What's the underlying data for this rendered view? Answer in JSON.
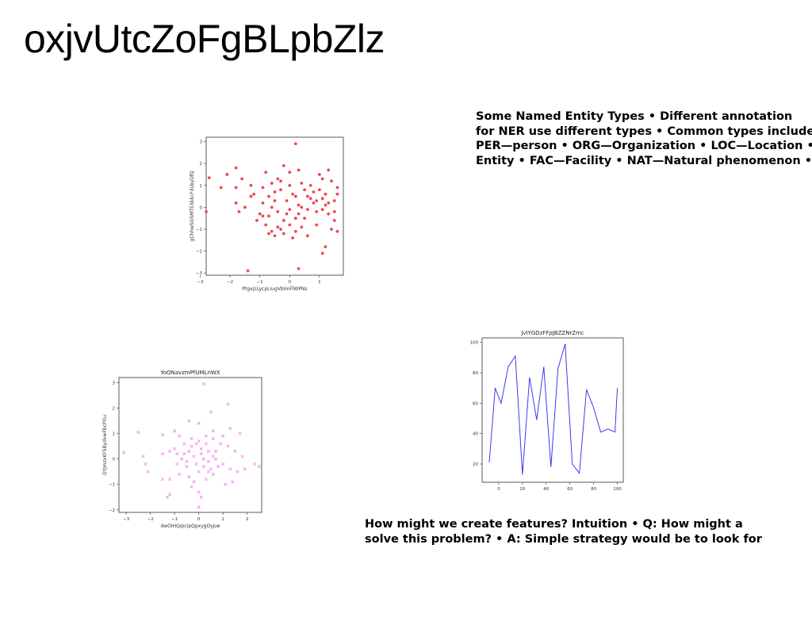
{
  "page": {
    "title": "oxjvUtcZoFgBLpbZlz"
  },
  "text_blocks": [
    {
      "lines": [
        "Some Named Entity Types • Different annotation",
        "for NER use different types • Common types include",
        "PER—person • ORG—Organization • LOC—Location •",
        "Entity • FAC—Facility • NAT—Natural phenomenon •"
      ]
    },
    {
      "lines": [
        "How might we create features? Intuition • Q: How might a",
        "solve this problem? • A: Simple strategy would be to look for"
      ]
    }
  ],
  "chart_data": [
    {
      "type": "scatter",
      "title": "",
      "xlabel": "PtgxjLLycpLiugVbImFlWPNs",
      "ylabel": "gChhwSGSMTEXkkcFdLbyDfQ",
      "xlim": [
        -2.8,
        1.8
      ],
      "ylim": [
        -3.1,
        3.2
      ],
      "xticks": [
        -3,
        -2,
        -1,
        0,
        1
      ],
      "yticks": [
        -3,
        -2,
        -1,
        0,
        1,
        2,
        3
      ],
      "marker": "o",
      "color": "#f0484e",
      "points": [
        [
          0.2,
          2.9
        ],
        [
          -0.2,
          1.9
        ],
        [
          -1.8,
          1.8
        ],
        [
          -2.1,
          1.5
        ],
        [
          -2.7,
          1.35
        ],
        [
          -1.6,
          1.3
        ],
        [
          -1.3,
          1.0
        ],
        [
          -2.3,
          0.9
        ],
        [
          -1.8,
          0.9
        ],
        [
          -0.5,
          0.7
        ],
        [
          -0.7,
          0.5
        ],
        [
          -1.2,
          0.6
        ],
        [
          -0.3,
          1.2
        ],
        [
          0.0,
          1.0
        ],
        [
          0.3,
          1.7
        ],
        [
          0.5,
          0.8
        ],
        [
          0.8,
          0.7
        ],
        [
          0.9,
          0.3
        ],
        [
          1.1,
          1.3
        ],
        [
          1.2,
          0.6
        ],
        [
          1.3,
          1.7
        ],
        [
          1.6,
          0.9
        ],
        [
          1.5,
          0.3
        ],
        [
          -0.9,
          0.2
        ],
        [
          -0.6,
          0.0
        ],
        [
          -0.4,
          -0.2
        ],
        [
          -0.1,
          0.3
        ],
        [
          0.2,
          0.5
        ],
        [
          0.4,
          0.0
        ],
        [
          0.6,
          -0.1
        ],
        [
          0.9,
          -0.2
        ],
        [
          1.1,
          -0.1
        ],
        [
          1.3,
          0.2
        ],
        [
          1.5,
          -0.6
        ],
        [
          1.6,
          -1.1
        ],
        [
          -1.0,
          -0.3
        ],
        [
          -0.8,
          -0.8
        ],
        [
          -0.6,
          -1.1
        ],
        [
          -0.3,
          -1.0
        ],
        [
          0.0,
          -0.8
        ],
        [
          0.2,
          -0.5
        ],
        [
          0.4,
          -0.9
        ],
        [
          -0.5,
          -1.3
        ],
        [
          0.1,
          -1.4
        ],
        [
          0.6,
          -1.3
        ],
        [
          1.2,
          -1.8
        ],
        [
          1.1,
          -2.1
        ],
        [
          0.3,
          -2.8
        ],
        [
          -1.4,
          -2.9
        ],
        [
          -1.8,
          0.2
        ],
        [
          -1.7,
          -0.2
        ],
        [
          -2.8,
          -0.2
        ],
        [
          -0.2,
          -0.6
        ],
        [
          0.0,
          -0.1
        ],
        [
          0.3,
          0.1
        ],
        [
          -0.9,
          0.9
        ],
        [
          -0.4,
          1.3
        ],
        [
          0.7,
          1.0
        ],
        [
          1.0,
          1.5
        ],
        [
          1.4,
          1.2
        ],
        [
          -0.6,
          1.1
        ],
        [
          -0.3,
          0.8
        ],
        [
          0.1,
          0.6
        ],
        [
          0.5,
          -0.5
        ],
        [
          0.8,
          0.2
        ],
        [
          1.2,
          0.1
        ],
        [
          -1.1,
          -0.6
        ],
        [
          -0.7,
          -0.4
        ],
        [
          -0.2,
          -1.2
        ],
        [
          0.2,
          -1.1
        ],
        [
          0.9,
          -0.8
        ],
        [
          1.4,
          -1.0
        ],
        [
          -0.8,
          1.6
        ],
        [
          -0.5,
          0.3
        ],
        [
          0.6,
          0.5
        ],
        [
          1.0,
          0.8
        ],
        [
          1.5,
          -0.2
        ],
        [
          -1.3,
          0.5
        ],
        [
          0.0,
          1.6
        ],
        [
          0.4,
          1.1
        ],
        [
          -0.1,
          -0.3
        ],
        [
          -0.7,
          -1.2
        ],
        [
          0.3,
          -0.3
        ],
        [
          1.1,
          0.4
        ],
        [
          1.3,
          -0.3
        ],
        [
          -0.4,
          -0.9
        ],
        [
          -0.9,
          -0.4
        ],
        [
          0.7,
          0.4
        ],
        [
          1.6,
          0.6
        ],
        [
          -1.5,
          0.0
        ]
      ]
    },
    {
      "type": "scatter",
      "title": "YoONavzmPfUMLnWX",
      "xlabel": "dwOIHQqicipQpxygOypw",
      "ylabel": "GYJmzxKFSBydvwFbcPGu",
      "xlim": [
        -3.3,
        2.6
      ],
      "ylim": [
        -2.1,
        3.2
      ],
      "xticks": [
        -3,
        -2,
        -1,
        0,
        1,
        2
      ],
      "yticks": [
        -2,
        -1,
        0,
        1,
        2,
        3
      ],
      "marker": "x",
      "color": "#ee82ee",
      "points": [
        [
          0.2,
          2.95
        ],
        [
          1.2,
          2.15
        ],
        [
          0.5,
          1.85
        ],
        [
          -2.5,
          1.05
        ],
        [
          -1.5,
          0.95
        ],
        [
          -0.4,
          1.5
        ],
        [
          0.0,
          1.4
        ],
        [
          -1.0,
          1.1
        ],
        [
          0.6,
          1.1
        ],
        [
          1.3,
          1.2
        ],
        [
          1.7,
          1.0
        ],
        [
          -3.1,
          0.25
        ],
        [
          -2.3,
          0.1
        ],
        [
          -2.2,
          -0.2
        ],
        [
          -2.1,
          -0.5
        ],
        [
          -1.5,
          0.2
        ],
        [
          -1.2,
          0.3
        ],
        [
          -0.9,
          0.2
        ],
        [
          -0.6,
          0.6
        ],
        [
          -0.3,
          0.5
        ],
        [
          0.0,
          0.7
        ],
        [
          0.3,
          0.9
        ],
        [
          0.6,
          0.8
        ],
        [
          0.9,
          0.6
        ],
        [
          1.2,
          0.5
        ],
        [
          1.5,
          0.3
        ],
        [
          1.8,
          0.1
        ],
        [
          2.3,
          -0.2
        ],
        [
          2.5,
          -0.3
        ],
        [
          -0.5,
          -0.1
        ],
        [
          -0.2,
          0.1
        ],
        [
          0.1,
          0.2
        ],
        [
          0.4,
          -0.1
        ],
        [
          0.7,
          0.0
        ],
        [
          1.0,
          -0.2
        ],
        [
          1.3,
          -0.4
        ],
        [
          1.6,
          -0.5
        ],
        [
          -1.5,
          -0.8
        ],
        [
          -1.2,
          -0.8
        ],
        [
          -0.8,
          -0.6
        ],
        [
          -0.4,
          -0.7
        ],
        [
          0.0,
          -0.5
        ],
        [
          0.3,
          -0.8
        ],
        [
          0.6,
          -0.6
        ],
        [
          1.1,
          -1.0
        ],
        [
          1.4,
          -0.9
        ],
        [
          -1.2,
          -1.4
        ],
        [
          -0.3,
          -1.1
        ],
        [
          0.0,
          -1.3
        ],
        [
          0.1,
          -1.5
        ],
        [
          0.0,
          -1.9
        ],
        [
          -0.3,
          0.8
        ],
        [
          0.1,
          0.4
        ],
        [
          0.4,
          0.3
        ],
        [
          -0.6,
          0.2
        ],
        [
          -0.1,
          -0.2
        ],
        [
          0.2,
          0.0
        ],
        [
          -0.8,
          0.9
        ],
        [
          0.7,
          0.3
        ],
        [
          1.0,
          0.9
        ],
        [
          -1.0,
          0.4
        ],
        [
          -0.5,
          -0.3
        ],
        [
          0.5,
          -0.4
        ],
        [
          -0.2,
          -0.9
        ],
        [
          0.3,
          0.6
        ],
        [
          -0.7,
          0.0
        ],
        [
          0.8,
          -0.3
        ],
        [
          -0.4,
          0.3
        ],
        [
          0.2,
          -0.3
        ],
        [
          -1.3,
          -1.5
        ],
        [
          1.9,
          -0.4
        ],
        [
          -0.1,
          0.6
        ],
        [
          0.6,
          0.1
        ],
        [
          -0.9,
          -0.2
        ],
        [
          0.4,
          -0.5
        ]
      ]
    },
    {
      "type": "line",
      "title": "JvIYGDzFFpJBZZNrZmc",
      "xlabel": "",
      "ylabel": "",
      "xlim": [
        -14,
        105
      ],
      "ylim": [
        8,
        103
      ],
      "xticks": [
        0,
        20,
        40,
        60,
        80,
        100
      ],
      "yticks": [
        20,
        40,
        60,
        80,
        100
      ],
      "color": "#3b3bf0",
      "x": [
        -8,
        -3,
        2,
        8,
        14,
        20,
        26,
        32,
        38,
        44,
        50,
        56,
        62,
        68,
        74,
        80,
        86,
        92,
        98
      ],
      "y": [
        21,
        70,
        60,
        84,
        91,
        13,
        77,
        49,
        84,
        18,
        83,
        99,
        20,
        14,
        69,
        57,
        41,
        43,
        41
      ]
    }
  ],
  "chart_tail": {
    "line_last_point": [
      100,
      70
    ]
  }
}
